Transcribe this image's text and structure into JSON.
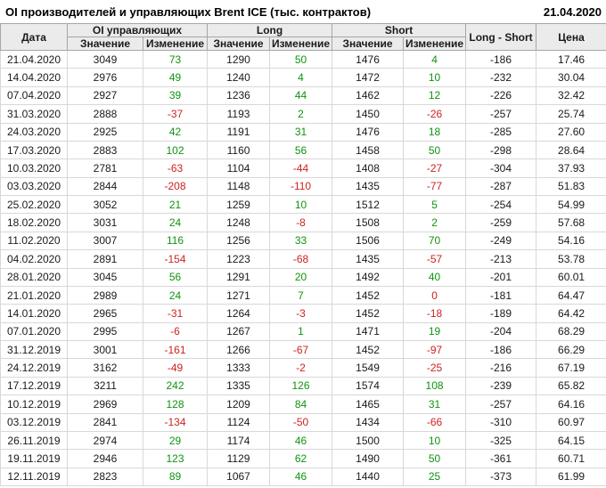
{
  "chart_data": {
    "type": "table",
    "title": "OI производителей и управляющих Brent ICE (тыс. контрактов)",
    "as_of_date": "21.04.2020",
    "headers": {
      "date": "Дата",
      "oi_group": "OI управляющих",
      "long_group": "Long",
      "short_group": "Short",
      "value": "Значение",
      "change": "Изменение",
      "long_short": "Long - Short",
      "price": "Цена"
    },
    "colors": {
      "positive_change": "#0f940f",
      "negative_change": "#cd2222",
      "header_bg": "#ebebeb"
    },
    "rows": [
      {
        "date": "21.04.2020",
        "oi": 3049,
        "oi_chg": 73,
        "long": 1290,
        "long_chg": 50,
        "short": 1476,
        "short_chg": 4,
        "long_short": -186,
        "price": "17.46"
      },
      {
        "date": "14.04.2020",
        "oi": 2976,
        "oi_chg": 49,
        "long": 1240,
        "long_chg": 4,
        "short": 1472,
        "short_chg": 10,
        "long_short": -232,
        "price": "30.04"
      },
      {
        "date": "07.04.2020",
        "oi": 2927,
        "oi_chg": 39,
        "long": 1236,
        "long_chg": 44,
        "short": 1462,
        "short_chg": 12,
        "long_short": -226,
        "price": "32.42"
      },
      {
        "date": "31.03.2020",
        "oi": 2888,
        "oi_chg": -37,
        "long": 1193,
        "long_chg": 2,
        "short": 1450,
        "short_chg": -26,
        "long_short": -257,
        "price": "25.74"
      },
      {
        "date": "24.03.2020",
        "oi": 2925,
        "oi_chg": 42,
        "long": 1191,
        "long_chg": 31,
        "short": 1476,
        "short_chg": 18,
        "long_short": -285,
        "price": "27.60"
      },
      {
        "date": "17.03.2020",
        "oi": 2883,
        "oi_chg": 102,
        "long": 1160,
        "long_chg": 56,
        "short": 1458,
        "short_chg": 50,
        "long_short": -298,
        "price": "28.64"
      },
      {
        "date": "10.03.2020",
        "oi": 2781,
        "oi_chg": -63,
        "long": 1104,
        "long_chg": -44,
        "short": 1408,
        "short_chg": -27,
        "long_short": -304,
        "price": "37.93"
      },
      {
        "date": "03.03.2020",
        "oi": 2844,
        "oi_chg": -208,
        "long": 1148,
        "long_chg": -110,
        "short": 1435,
        "short_chg": -77,
        "long_short": -287,
        "price": "51.83"
      },
      {
        "date": "25.02.2020",
        "oi": 3052,
        "oi_chg": 21,
        "long": 1259,
        "long_chg": 10,
        "short": 1512,
        "short_chg": 5,
        "long_short": -254,
        "price": "54.99"
      },
      {
        "date": "18.02.2020",
        "oi": 3031,
        "oi_chg": 24,
        "long": 1248,
        "long_chg": -8,
        "short": 1508,
        "short_chg": 2,
        "long_short": -259,
        "price": "57.68"
      },
      {
        "date": "11.02.2020",
        "oi": 3007,
        "oi_chg": 116,
        "long": 1256,
        "long_chg": 33,
        "short": 1506,
        "short_chg": 70,
        "long_short": -249,
        "price": "54.16"
      },
      {
        "date": "04.02.2020",
        "oi": 2891,
        "oi_chg": -154,
        "long": 1223,
        "long_chg": -68,
        "short": 1435,
        "short_chg": -57,
        "long_short": -213,
        "price": "53.78"
      },
      {
        "date": "28.01.2020",
        "oi": 3045,
        "oi_chg": 56,
        "long": 1291,
        "long_chg": 20,
        "short": 1492,
        "short_chg": 40,
        "long_short": -201,
        "price": "60.01"
      },
      {
        "date": "21.01.2020",
        "oi": 2989,
        "oi_chg": 24,
        "long": 1271,
        "long_chg": 7,
        "short": 1452,
        "short_chg": 0,
        "long_short": -181,
        "price": "64.47"
      },
      {
        "date": "14.01.2020",
        "oi": 2965,
        "oi_chg": -31,
        "long": 1264,
        "long_chg": -3,
        "short": 1452,
        "short_chg": -18,
        "long_short": -189,
        "price": "64.42"
      },
      {
        "date": "07.01.2020",
        "oi": 2995,
        "oi_chg": -6,
        "long": 1267,
        "long_chg": 1,
        "short": 1471,
        "short_chg": 19,
        "long_short": -204,
        "price": "68.29"
      },
      {
        "date": "31.12.2019",
        "oi": 3001,
        "oi_chg": -161,
        "long": 1266,
        "long_chg": -67,
        "short": 1452,
        "short_chg": -97,
        "long_short": -186,
        "price": "66.29"
      },
      {
        "date": "24.12.2019",
        "oi": 3162,
        "oi_chg": -49,
        "long": 1333,
        "long_chg": -2,
        "short": 1549,
        "short_chg": -25,
        "long_short": -216,
        "price": "67.19"
      },
      {
        "date": "17.12.2019",
        "oi": 3211,
        "oi_chg": 242,
        "long": 1335,
        "long_chg": 126,
        "short": 1574,
        "short_chg": 108,
        "long_short": -239,
        "price": "65.82"
      },
      {
        "date": "10.12.2019",
        "oi": 2969,
        "oi_chg": 128,
        "long": 1209,
        "long_chg": 84,
        "short": 1465,
        "short_chg": 31,
        "long_short": -257,
        "price": "64.16"
      },
      {
        "date": "03.12.2019",
        "oi": 2841,
        "oi_chg": -134,
        "long": 1124,
        "long_chg": -50,
        "short": 1434,
        "short_chg": -66,
        "long_short": -310,
        "price": "60.97"
      },
      {
        "date": "26.11.2019",
        "oi": 2974,
        "oi_chg": 29,
        "long": 1174,
        "long_chg": 46,
        "short": 1500,
        "short_chg": 10,
        "long_short": -325,
        "price": "64.15"
      },
      {
        "date": "19.11.2019",
        "oi": 2946,
        "oi_chg": 123,
        "long": 1129,
        "long_chg": 62,
        "short": 1490,
        "short_chg": 50,
        "long_short": -361,
        "price": "60.71"
      },
      {
        "date": "12.11.2019",
        "oi": 2823,
        "oi_chg": 89,
        "long": 1067,
        "long_chg": 46,
        "short": 1440,
        "short_chg": 25,
        "long_short": -373,
        "price": "61.99"
      }
    ]
  }
}
